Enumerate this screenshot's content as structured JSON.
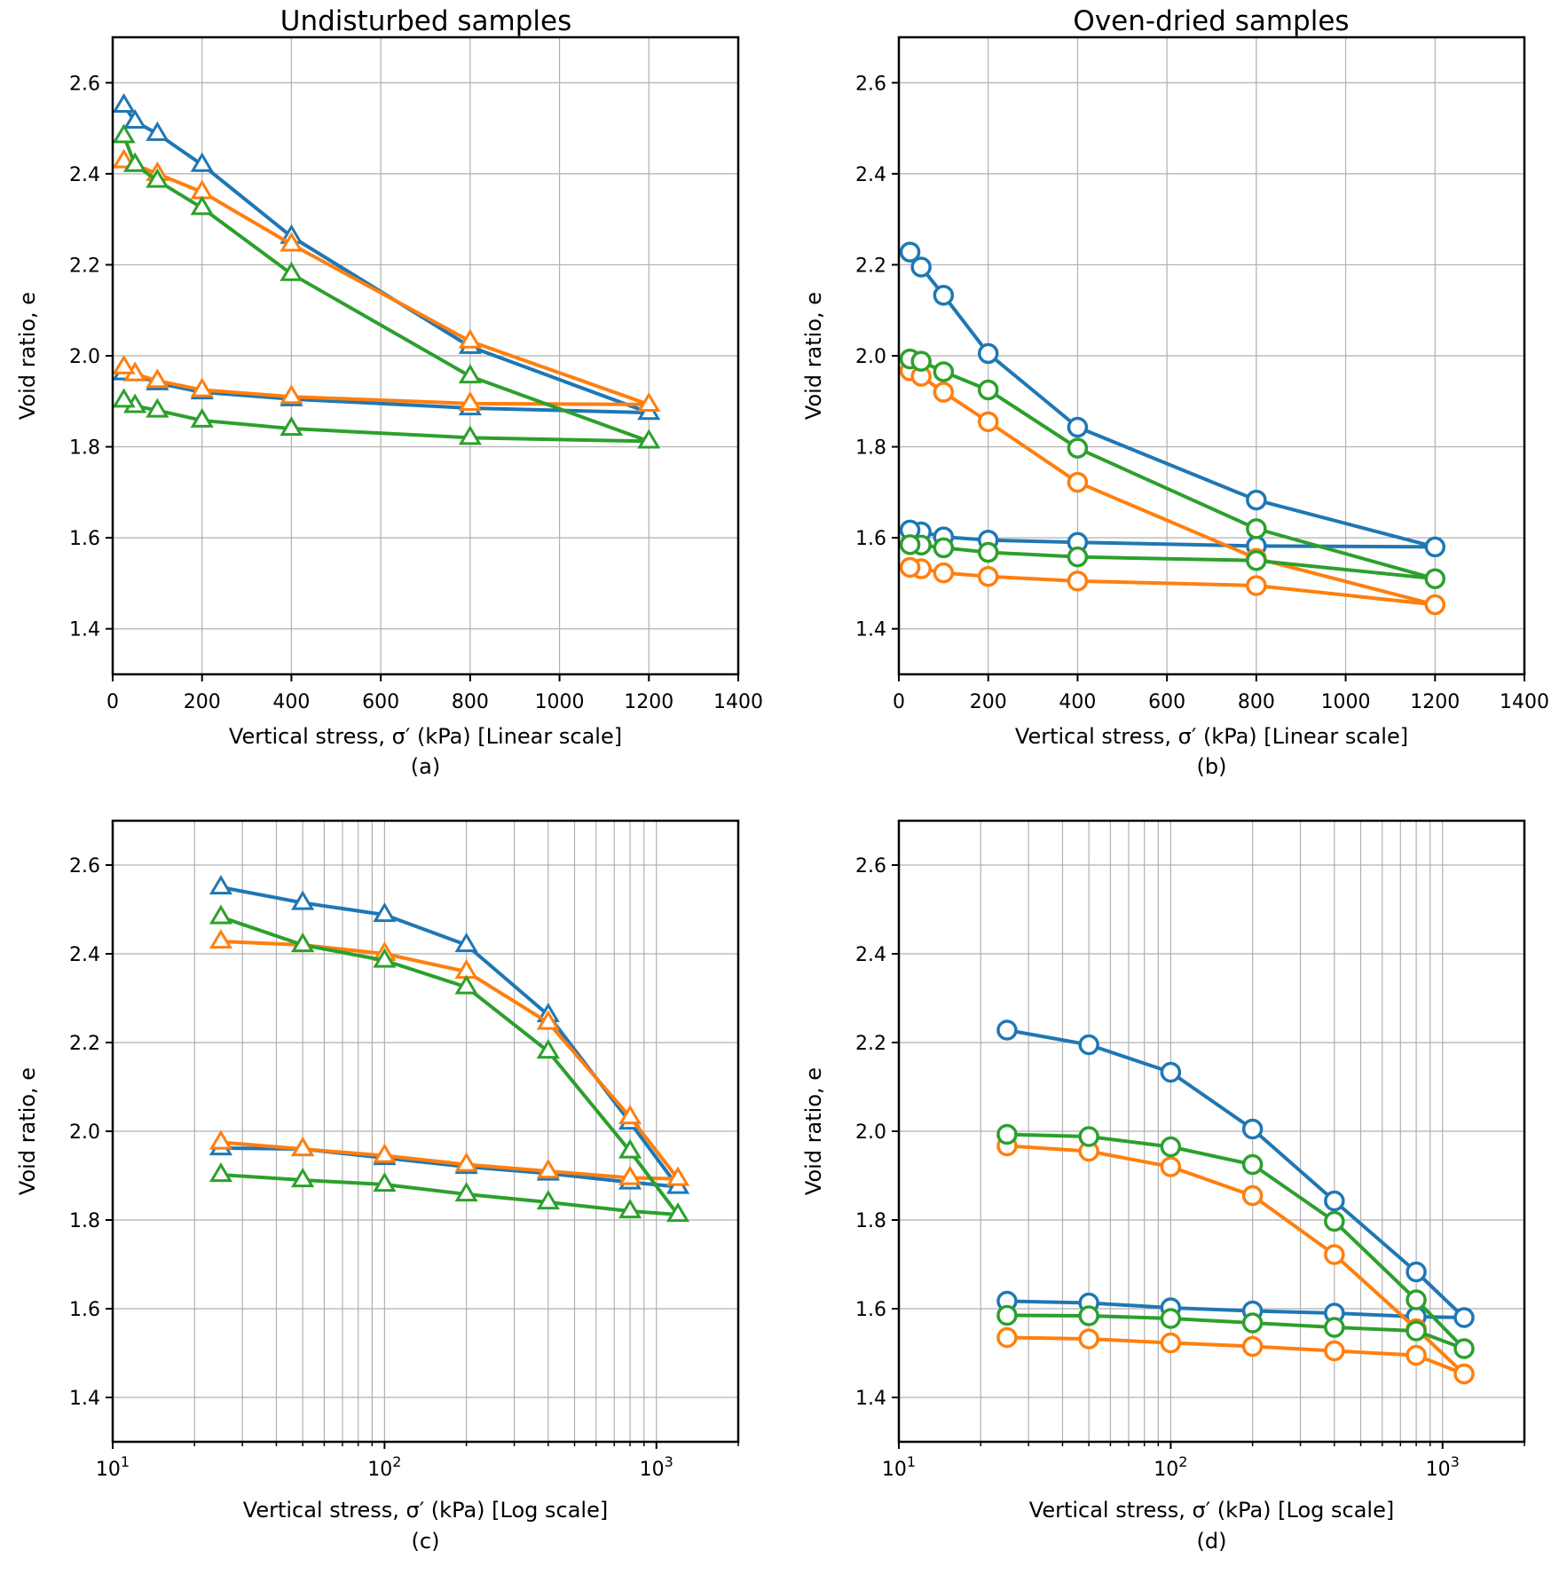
{
  "column_titles": [
    "Undisturbed samples",
    "Oven-dried samples"
  ],
  "colors": {
    "blue": "#1f77b4",
    "orange": "#ff7f0e",
    "green": "#2ca02c",
    "grid": "#b0b0b0"
  },
  "chart_data": [
    {
      "panel": "(a)",
      "type": "line",
      "marker": "triangle",
      "title": "Undisturbed samples",
      "xlabel": "Vertical stress, σ′ (kPa) [Linear scale]",
      "ylabel": "Void ratio, e",
      "xscale": "linear",
      "xlim": [
        0,
        1400
      ],
      "ylim": [
        1.3,
        2.7
      ],
      "xticks": [
        0,
        200,
        400,
        600,
        800,
        1000,
        1200,
        1400
      ],
      "xtick_labels": [
        "0",
        "200",
        "400",
        "600",
        "800",
        "1000",
        "1200",
        "1400"
      ],
      "yticks": [
        1.4,
        1.6,
        1.8,
        2.0,
        2.2,
        2.4,
        2.6
      ],
      "ytick_labels": [
        "1.4",
        "1.6",
        "1.8",
        "2.0",
        "2.2",
        "2.4",
        "2.6"
      ],
      "grid": true,
      "series": [
        {
          "color": "blue",
          "x": [
            25,
            50,
            100,
            200,
            400,
            800,
            1200,
            800,
            400,
            200,
            100,
            50,
            25
          ],
          "y": [
            2.55,
            2.515,
            2.488,
            2.42,
            2.262,
            2.02,
            1.875,
            1.885,
            1.905,
            1.92,
            1.94,
            1.96,
            1.962
          ]
        },
        {
          "color": "orange",
          "x": [
            25,
            50,
            100,
            200,
            400,
            800,
            1200,
            800,
            400,
            200,
            100,
            50,
            25
          ],
          "y": [
            2.428,
            2.42,
            2.4,
            2.36,
            2.245,
            2.032,
            1.893,
            1.895,
            1.91,
            1.925,
            1.945,
            1.96,
            1.975
          ]
        },
        {
          "color": "green",
          "x": [
            25,
            50,
            100,
            200,
            400,
            800,
            1200,
            800,
            400,
            200,
            100,
            50,
            25
          ],
          "y": [
            2.483,
            2.42,
            2.385,
            2.325,
            2.18,
            1.955,
            1.812,
            1.82,
            1.84,
            1.858,
            1.88,
            1.89,
            1.902
          ]
        }
      ]
    },
    {
      "panel": "(b)",
      "type": "line",
      "marker": "circle",
      "title": "Oven-dried samples",
      "xlabel": "Vertical stress, σ′ (kPa) [Linear scale]",
      "ylabel": "Void ratio, e",
      "xscale": "linear",
      "xlim": [
        0,
        1400
      ],
      "ylim": [
        1.3,
        2.7
      ],
      "xticks": [
        0,
        200,
        400,
        600,
        800,
        1000,
        1200,
        1400
      ],
      "xtick_labels": [
        "0",
        "200",
        "400",
        "600",
        "800",
        "1000",
        "1200",
        "1400"
      ],
      "yticks": [
        1.4,
        1.6,
        1.8,
        2.0,
        2.2,
        2.4,
        2.6
      ],
      "ytick_labels": [
        "1.4",
        "1.6",
        "1.8",
        "2.0",
        "2.2",
        "2.4",
        "2.6"
      ],
      "grid": true,
      "series": [
        {
          "color": "blue",
          "x": [
            25,
            50,
            100,
            200,
            400,
            800,
            1200,
            800,
            400,
            200,
            100,
            50,
            25
          ],
          "y": [
            2.228,
            2.195,
            2.133,
            2.005,
            1.843,
            1.683,
            1.58,
            1.582,
            1.59,
            1.595,
            1.602,
            1.613,
            1.617
          ]
        },
        {
          "color": "orange",
          "x": [
            25,
            50,
            100,
            200,
            400,
            800,
            1200,
            800,
            400,
            200,
            100,
            50,
            25
          ],
          "y": [
            1.967,
            1.955,
            1.92,
            1.855,
            1.722,
            1.555,
            1.453,
            1.495,
            1.505,
            1.515,
            1.523,
            1.532,
            1.535
          ]
        },
        {
          "color": "green",
          "x": [
            25,
            50,
            100,
            200,
            400,
            800,
            1200,
            800,
            400,
            200,
            100,
            50,
            25
          ],
          "y": [
            1.993,
            1.988,
            1.965,
            1.925,
            1.797,
            1.62,
            1.51,
            1.55,
            1.558,
            1.568,
            1.578,
            1.584,
            1.585
          ]
        }
      ]
    },
    {
      "panel": "(c)",
      "type": "line",
      "marker": "triangle",
      "xlabel": "Vertical stress, σ′ (kPa) [Log scale]",
      "ylabel": "Void ratio, e",
      "xscale": "log",
      "xlim": [
        10,
        2000
      ],
      "ylim": [
        1.3,
        2.7
      ],
      "xticks": [
        10,
        100,
        1000
      ],
      "xtick_labels": [
        [
          "10",
          "1"
        ],
        [
          "10",
          "2"
        ],
        [
          "10",
          "3"
        ]
      ],
      "yticks": [
        1.4,
        1.6,
        1.8,
        2.0,
        2.2,
        2.4,
        2.6
      ],
      "ytick_labels": [
        "1.4",
        "1.6",
        "1.8",
        "2.0",
        "2.2",
        "2.4",
        "2.6"
      ],
      "grid": true,
      "series": [
        {
          "color": "blue",
          "x": [
            25,
            50,
            100,
            200,
            400,
            800,
            1200,
            800,
            400,
            200,
            100,
            50,
            25
          ],
          "y": [
            2.55,
            2.515,
            2.488,
            2.42,
            2.262,
            2.02,
            1.875,
            1.885,
            1.905,
            1.92,
            1.94,
            1.96,
            1.962
          ]
        },
        {
          "color": "orange",
          "x": [
            25,
            50,
            100,
            200,
            400,
            800,
            1200,
            800,
            400,
            200,
            100,
            50,
            25
          ],
          "y": [
            2.428,
            2.42,
            2.4,
            2.36,
            2.245,
            2.032,
            1.893,
            1.895,
            1.91,
            1.925,
            1.945,
            1.96,
            1.975
          ]
        },
        {
          "color": "green",
          "x": [
            25,
            50,
            100,
            200,
            400,
            800,
            1200,
            800,
            400,
            200,
            100,
            50,
            25
          ],
          "y": [
            2.483,
            2.42,
            2.385,
            2.325,
            2.18,
            1.955,
            1.812,
            1.82,
            1.84,
            1.858,
            1.88,
            1.89,
            1.902
          ]
        }
      ]
    },
    {
      "panel": "(d)",
      "type": "line",
      "marker": "circle",
      "xlabel": "Vertical stress, σ′ (kPa) [Log scale]",
      "ylabel": "Void ratio, e",
      "xscale": "log",
      "xlim": [
        10,
        2000
      ],
      "ylim": [
        1.3,
        2.7
      ],
      "xticks": [
        10,
        100,
        1000
      ],
      "xtick_labels": [
        [
          "10",
          "1"
        ],
        [
          "10",
          "2"
        ],
        [
          "10",
          "3"
        ]
      ],
      "yticks": [
        1.4,
        1.6,
        1.8,
        2.0,
        2.2,
        2.4,
        2.6
      ],
      "ytick_labels": [
        "1.4",
        "1.6",
        "1.8",
        "2.0",
        "2.2",
        "2.4",
        "2.6"
      ],
      "grid": true,
      "series": [
        {
          "color": "blue",
          "x": [
            25,
            50,
            100,
            200,
            400,
            800,
            1200,
            800,
            400,
            200,
            100,
            50,
            25
          ],
          "y": [
            2.228,
            2.195,
            2.133,
            2.005,
            1.843,
            1.683,
            1.58,
            1.582,
            1.59,
            1.595,
            1.602,
            1.613,
            1.617
          ]
        },
        {
          "color": "orange",
          "x": [
            25,
            50,
            100,
            200,
            400,
            800,
            1200,
            800,
            400,
            200,
            100,
            50,
            25
          ],
          "y": [
            1.967,
            1.955,
            1.92,
            1.855,
            1.722,
            1.555,
            1.453,
            1.495,
            1.505,
            1.515,
            1.523,
            1.532,
            1.535
          ]
        },
        {
          "color": "green",
          "x": [
            25,
            50,
            100,
            200,
            400,
            800,
            1200,
            800,
            400,
            200,
            100,
            50,
            25
          ],
          "y": [
            1.993,
            1.988,
            1.965,
            1.925,
            1.797,
            1.62,
            1.51,
            1.55,
            1.558,
            1.568,
            1.578,
            1.584,
            1.585
          ]
        }
      ]
    }
  ]
}
